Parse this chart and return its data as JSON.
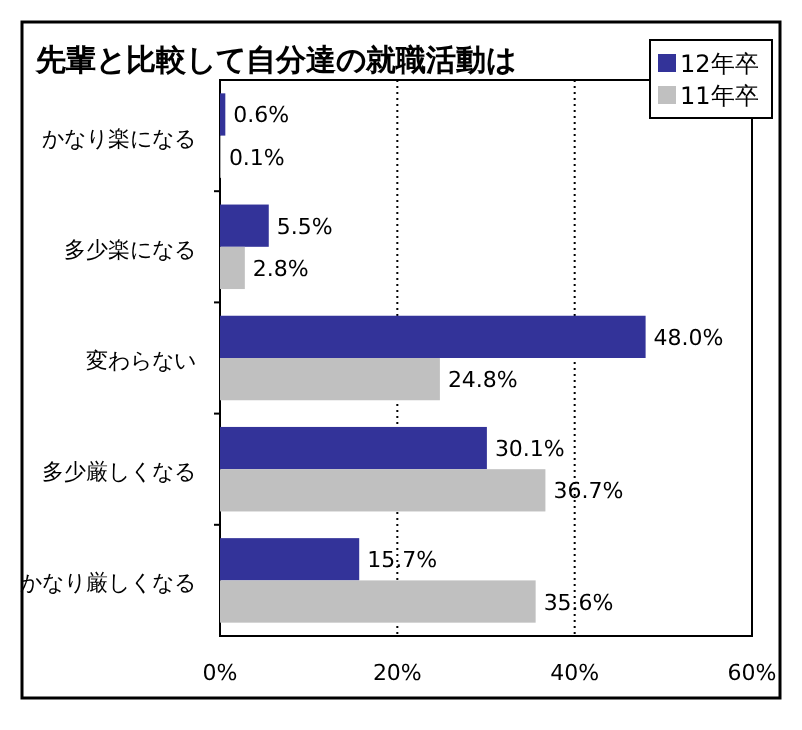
{
  "chart_data": {
    "type": "bar",
    "orientation": "horizontal",
    "title": "先輩と比較して自分達の就職活動は",
    "categories": [
      "かなり楽になる",
      "多少楽になる",
      "変わらない",
      "多少厳しくなる",
      "かなり厳しくなる"
    ],
    "series": [
      {
        "name": "12年卒",
        "color": "#333399",
        "values": [
          0.6,
          5.5,
          48.0,
          30.1,
          15.7
        ],
        "value_labels": [
          "0.6%",
          "5.5%",
          "48.0%",
          "30.1%",
          "15.7%"
        ]
      },
      {
        "name": "11年卒",
        "color": "#c0c0c0",
        "values": [
          0.1,
          2.8,
          24.8,
          36.7,
          35.6
        ],
        "value_labels": [
          "0.1%",
          "2.8%",
          "24.8%",
          "36.7%",
          "35.6%"
        ]
      }
    ],
    "xlim": [
      0,
      60
    ],
    "xticks": [
      {
        "value": 0,
        "label": "0%"
      },
      {
        "value": 20,
        "label": "20%"
      },
      {
        "value": 40,
        "label": "40%"
      },
      {
        "value": 60,
        "label": "60%"
      }
    ],
    "grid": "x",
    "legend": "top right"
  }
}
